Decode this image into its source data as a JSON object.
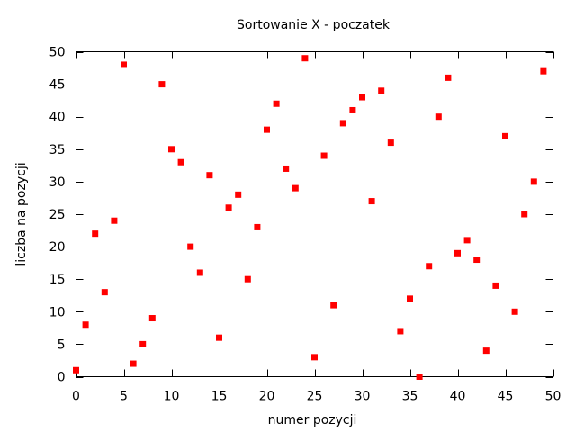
{
  "chart_data": {
    "type": "scatter",
    "title": "Sortowanie X - poczatek",
    "xlabel": "numer pozycji",
    "ylabel": "liczba na pozycji",
    "xlim": [
      0,
      50
    ],
    "ylim": [
      0,
      50
    ],
    "xticks": [
      0,
      5,
      10,
      15,
      20,
      25,
      30,
      35,
      40,
      45,
      50
    ],
    "yticks": [
      0,
      5,
      10,
      15,
      20,
      25,
      30,
      35,
      40,
      45,
      50
    ],
    "grid": false,
    "legend": "none",
    "marker_color": "#ff0000",
    "x": [
      0,
      1,
      2,
      3,
      4,
      5,
      6,
      7,
      8,
      9,
      10,
      11,
      12,
      13,
      14,
      15,
      16,
      17,
      18,
      19,
      20,
      21,
      22,
      23,
      24,
      25,
      26,
      27,
      28,
      29,
      30,
      31,
      32,
      33,
      34,
      35,
      36,
      37,
      38,
      39,
      40,
      41,
      42,
      43,
      44,
      45,
      46,
      47,
      48,
      49
    ],
    "y": [
      1,
      8,
      22,
      13,
      24,
      48,
      2,
      5,
      9,
      45,
      35,
      33,
      20,
      16,
      31,
      6,
      26,
      28,
      15,
      23,
      38,
      42,
      32,
      29,
      49,
      3,
      34,
      11,
      39,
      41,
      43,
      27,
      44,
      36,
      7,
      12,
      0,
      17,
      40,
      46,
      19,
      21,
      18,
      4,
      14,
      37,
      10,
      25,
      30,
      47
    ]
  }
}
